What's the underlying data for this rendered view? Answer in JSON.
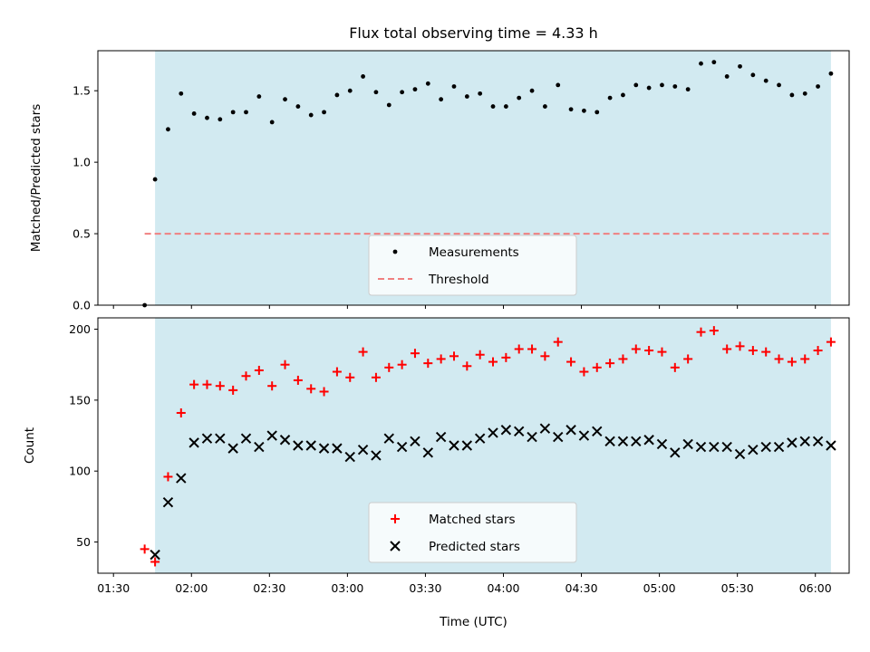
{
  "chart_data": [
    {
      "type": "scatter",
      "title": "Flux total observing time = 4.33 h",
      "xlabel": "",
      "ylabel": "Matched/Predicted stars",
      "xlim": [
        "01:24",
        "06:13"
      ],
      "ylim": [
        0,
        1.78
      ],
      "yticks": [
        0.0,
        0.5,
        1.0,
        1.5
      ],
      "ytick_labels": [
        "0.0",
        "0.5",
        "1.0",
        "1.5"
      ],
      "shaded_span": [
        "01:46",
        "06:06"
      ],
      "shaded_color": "#add8e6",
      "legend_position": "lower-center",
      "series": [
        {
          "name": "Measurements",
          "marker": "dot",
          "color": "#000000",
          "x": [
            "01:42",
            "01:46",
            "01:51",
            "01:56",
            "02:01",
            "02:06",
            "02:11",
            "02:16",
            "02:21",
            "02:26",
            "02:31",
            "02:36",
            "02:41",
            "02:46",
            "02:51",
            "02:56",
            "03:01",
            "03:06",
            "03:11",
            "03:16",
            "03:21",
            "03:26",
            "03:31",
            "03:36",
            "03:41",
            "03:46",
            "03:51",
            "03:56",
            "04:01",
            "04:06",
            "04:11",
            "04:16",
            "04:21",
            "04:26",
            "04:31",
            "04:36",
            "04:41",
            "04:46",
            "04:51",
            "04:56",
            "05:01",
            "05:06",
            "05:11",
            "05:16",
            "05:21",
            "05:26",
            "05:31",
            "05:36",
            "05:41",
            "05:46",
            "05:51",
            "05:56",
            "06:01",
            "06:06"
          ],
          "y": [
            0.0,
            0.88,
            1.23,
            1.48,
            1.34,
            1.31,
            1.3,
            1.35,
            1.35,
            1.46,
            1.28,
            1.44,
            1.39,
            1.33,
            1.35,
            1.47,
            1.5,
            1.6,
            1.49,
            1.4,
            1.49,
            1.51,
            1.55,
            1.44,
            1.53,
            1.46,
            1.48,
            1.39,
            1.39,
            1.45,
            1.5,
            1.39,
            1.54,
            1.37,
            1.36,
            1.35,
            1.45,
            1.47,
            1.54,
            1.52,
            1.54,
            1.53,
            1.51,
            1.69,
            1.7,
            1.6,
            1.67,
            1.61,
            1.57,
            1.54,
            1.47,
            1.48,
            1.53,
            1.62
          ]
        },
        {
          "name": "Threshold",
          "marker": "dashed-line",
          "color": "#f08080",
          "x": [
            "01:42",
            "06:06"
          ],
          "y": [
            0.5,
            0.5
          ]
        }
      ]
    },
    {
      "type": "scatter",
      "title": "",
      "xlabel": "Time (UTC)",
      "ylabel": "Count",
      "xlim": [
        "01:24",
        "06:13"
      ],
      "ylim": [
        28,
        208
      ],
      "yticks": [
        50,
        100,
        150,
        200
      ],
      "ytick_labels": [
        "50",
        "100",
        "150",
        "200"
      ],
      "xticks": [
        "01:30",
        "02:00",
        "02:30",
        "03:00",
        "03:30",
        "04:00",
        "04:30",
        "05:00",
        "05:30",
        "06:00"
      ],
      "xtick_labels": [
        "01:30",
        "02:00",
        "02:30",
        "03:00",
        "03:30",
        "04:00",
        "04:30",
        "05:00",
        "05:30",
        "06:00"
      ],
      "shaded_span": [
        "01:46",
        "06:06"
      ],
      "shaded_color": "#add8e6",
      "legend_position": "lower-center",
      "series": [
        {
          "name": "Matched stars",
          "marker": "plus",
          "color": "#ff0000",
          "x": [
            "01:42",
            "01:46",
            "01:51",
            "01:56",
            "02:01",
            "02:06",
            "02:11",
            "02:16",
            "02:21",
            "02:26",
            "02:31",
            "02:36",
            "02:41",
            "02:46",
            "02:51",
            "02:56",
            "03:01",
            "03:06",
            "03:11",
            "03:16",
            "03:21",
            "03:26",
            "03:31",
            "03:36",
            "03:41",
            "03:46",
            "03:51",
            "03:56",
            "04:01",
            "04:06",
            "04:11",
            "04:16",
            "04:21",
            "04:26",
            "04:31",
            "04:36",
            "04:41",
            "04:46",
            "04:51",
            "04:56",
            "05:01",
            "05:06",
            "05:11",
            "05:16",
            "05:21",
            "05:26",
            "05:31",
            "05:36",
            "05:41",
            "05:46",
            "05:51",
            "05:56",
            "06:01",
            "06:06"
          ],
          "y": [
            45,
            36,
            96,
            141,
            161,
            161,
            160,
            157,
            167,
            171,
            160,
            175,
            164,
            158,
            156,
            170,
            166,
            184,
            166,
            173,
            175,
            183,
            176,
            179,
            181,
            174,
            182,
            177,
            180,
            186,
            186,
            181,
            191,
            177,
            170,
            173,
            176,
            179,
            186,
            185,
            184,
            173,
            179,
            198,
            199,
            186,
            188,
            185,
            184,
            179,
            177,
            179,
            185,
            191
          ]
        },
        {
          "name": "Predicted stars",
          "marker": "x",
          "color": "#000000",
          "x": [
            "01:46",
            "01:51",
            "01:56",
            "02:01",
            "02:06",
            "02:11",
            "02:16",
            "02:21",
            "02:26",
            "02:31",
            "02:36",
            "02:41",
            "02:46",
            "02:51",
            "02:56",
            "03:01",
            "03:06",
            "03:11",
            "03:16",
            "03:21",
            "03:26",
            "03:31",
            "03:36",
            "03:41",
            "03:46",
            "03:51",
            "03:56",
            "04:01",
            "04:06",
            "04:11",
            "04:16",
            "04:21",
            "04:26",
            "04:31",
            "04:36",
            "04:41",
            "04:46",
            "04:51",
            "04:56",
            "05:01",
            "05:06",
            "05:11",
            "05:16",
            "05:21",
            "05:26",
            "05:31",
            "05:36",
            "05:41",
            "05:46",
            "05:51",
            "05:56",
            "06:01",
            "06:06"
          ],
          "y": [
            41,
            78,
            95,
            120,
            123,
            123,
            116,
            123,
            117,
            125,
            122,
            118,
            118,
            116,
            116,
            110,
            115,
            111,
            123,
            117,
            121,
            113,
            124,
            118,
            118,
            123,
            127,
            129,
            128,
            124,
            130,
            124,
            129,
            125,
            128,
            121,
            121,
            121,
            122,
            119,
            113,
            119,
            117,
            117,
            117,
            112,
            115,
            117,
            117,
            120,
            121,
            121,
            118
          ]
        }
      ]
    }
  ]
}
